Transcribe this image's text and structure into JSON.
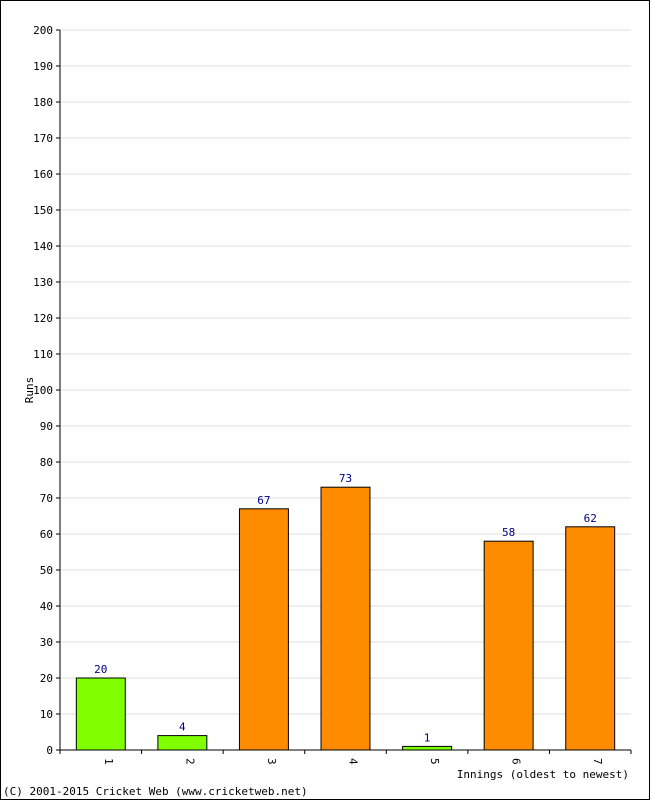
{
  "chart_data": {
    "type": "bar",
    "categories": [
      "1",
      "2",
      "3",
      "4",
      "5",
      "6",
      "7"
    ],
    "values": [
      20,
      4,
      67,
      73,
      1,
      58,
      62
    ],
    "bar_colors": [
      "#7fff00",
      "#7fff00",
      "#ff8c00",
      "#ff8c00",
      "#7fff00",
      "#ff8c00",
      "#ff8c00"
    ],
    "title": "",
    "xlabel": "Innings (oldest to newest)",
    "ylabel": "Runs",
    "ylim": [
      0,
      200
    ],
    "yticks": [
      0,
      10,
      20,
      30,
      40,
      50,
      60,
      70,
      80,
      90,
      100,
      110,
      120,
      130,
      140,
      150,
      160,
      170,
      180,
      190,
      200
    ],
    "grid": true,
    "value_label_color": "#000080",
    "grid_color": "#dddddd"
  },
  "footer": {
    "copyright": "(C) 2001-2015 Cricket Web (www.cricketweb.net)"
  }
}
